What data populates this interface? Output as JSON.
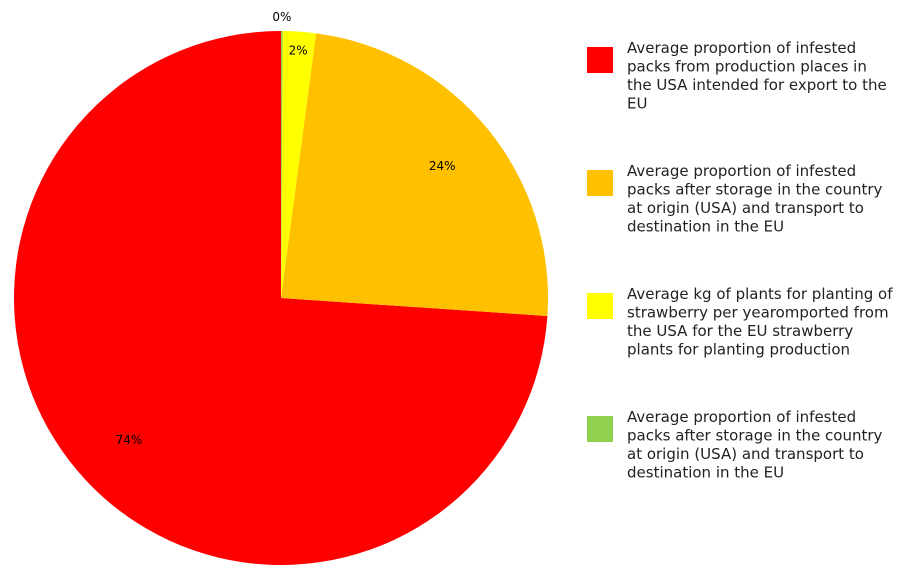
{
  "chart_data": {
    "type": "pie",
    "slices": [
      {
        "label": "Average proportion of infested packs from production places in the USA intended for export to the EU",
        "value": 74,
        "display": "74%",
        "color": "#ff0000",
        "legend_lines": [
          "Average proportion of infested",
          "packs from production places in",
          "the USA intended for export to the",
          "EU"
        ]
      },
      {
        "label": "Average proportion of infested packs after storage in the country at origin (USA) and transport to destination in the EU",
        "value": 24,
        "display": "24%",
        "color": "#ffc000",
        "legend_lines": [
          "Average proportion of infested",
          "packs after storage in the country",
          "at origin (USA) and transport to",
          "destination in the EU"
        ]
      },
      {
        "label": "Average kg of plants for planting of strawberry per yearomported from the USA for the EU strawberry plants for planting production",
        "value": 2,
        "display": "2%",
        "color": "#ffff00",
        "legend_lines": [
          "Average kg of plants for planting of",
          "strawberry per yearomported from",
          "the USA for the EU strawberry",
          "plants for planting production"
        ]
      },
      {
        "label": "Average proportion of infested packs after storage in the country at origin (USA) and transport to destination in the EU",
        "value": 0.1,
        "display": "0%",
        "color": "#92d050",
        "legend_lines": [
          "Average proportion of infested",
          "packs after storage in the country",
          "at origin (USA) and transport to",
          "destination in the EU"
        ]
      }
    ],
    "direction": "counterclockwise",
    "start_angle": "top",
    "legend_position": "right"
  }
}
